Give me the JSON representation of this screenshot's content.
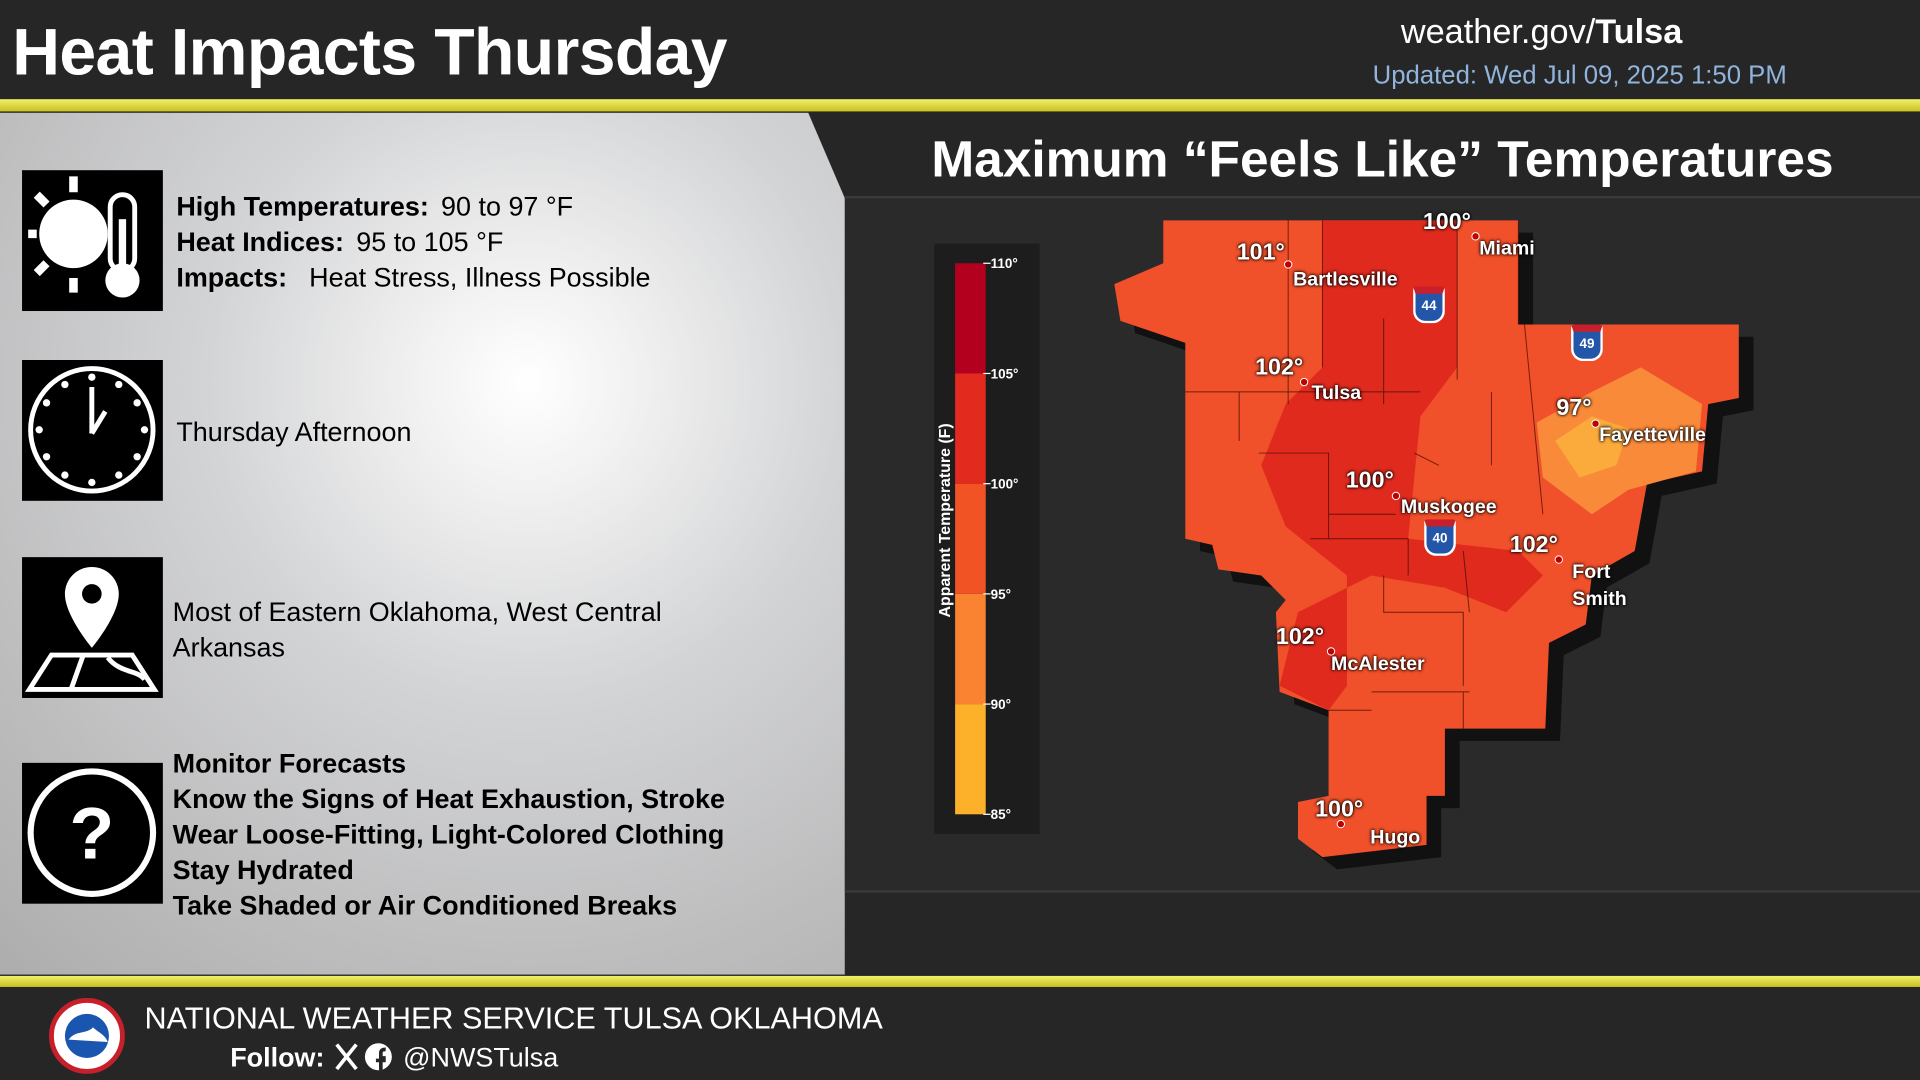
{
  "header": {
    "title": "Heat Impacts Thursday",
    "site_prefix": "weather.gov/",
    "site_office": "Tulsa",
    "updated": "Updated: Wed Jul 09, 2025 1:50 PM"
  },
  "summary": {
    "items": [
      {
        "label": "High Temperatures:",
        "text": "90 to 97 °F"
      },
      {
        "label": "Heat Indices:",
        "text": "95 to 105 °F"
      },
      {
        "label": "Impacts:",
        "text": "Heat Stress, Illness Possible"
      }
    ],
    "timing": "Thursday Afternoon",
    "location": "Most of Eastern Oklahoma, West Central Arkansas",
    "actions": [
      "Monitor Forecasts",
      "Know the Signs of Heat Exhaustion, Stroke",
      "Wear Loose-Fitting, Light-Colored Clothing",
      "Stay Hydrated",
      "Take Shaded or Air Conditioned Breaks"
    ]
  },
  "map": {
    "title": "Maximum “Feels Like” Temperatures",
    "legend": {
      "label": "Apparent Temperature (F)",
      "range": [
        85,
        110
      ],
      "ticks": [
        {
          "value": 110,
          "label": "110°"
        },
        {
          "value": 105,
          "label": "105°"
        },
        {
          "value": 100,
          "label": "100°"
        },
        {
          "value": 95,
          "label": "95°"
        },
        {
          "value": 90,
          "label": "90°"
        },
        {
          "value": 85,
          "label": "85°"
        }
      ],
      "bands": [
        {
          "from": 85,
          "to": 90,
          "color": "#fdb02a"
        },
        {
          "from": 90,
          "to": 95,
          "color": "#f98330"
        },
        {
          "from": 95,
          "to": 100,
          "color": "#f25324"
        },
        {
          "from": 100,
          "to": 105,
          "color": "#e32a1f"
        },
        {
          "from": 105,
          "to": 110,
          "color": "#b3001e"
        }
      ]
    },
    "cities": [
      {
        "name": "Miami",
        "temp": "100°"
      },
      {
        "name": "Bartlesville",
        "temp": "101°"
      },
      {
        "name": "Tulsa",
        "temp": "102°"
      },
      {
        "name": "Fayetteville",
        "temp": "97°"
      },
      {
        "name": "Muskogee",
        "temp": "100°"
      },
      {
        "name": "Fort Smith",
        "temp": "102°"
      },
      {
        "name": "McAlester",
        "temp": "102°"
      },
      {
        "name": "Hugo",
        "temp": "100°"
      }
    ],
    "interstates": [
      "44",
      "49",
      "40"
    ]
  },
  "footer": {
    "agency": "NATIONAL WEATHER SERVICE TULSA OKLAHOMA",
    "follow": "Follow:",
    "handle": "@NWSTulsa"
  }
}
